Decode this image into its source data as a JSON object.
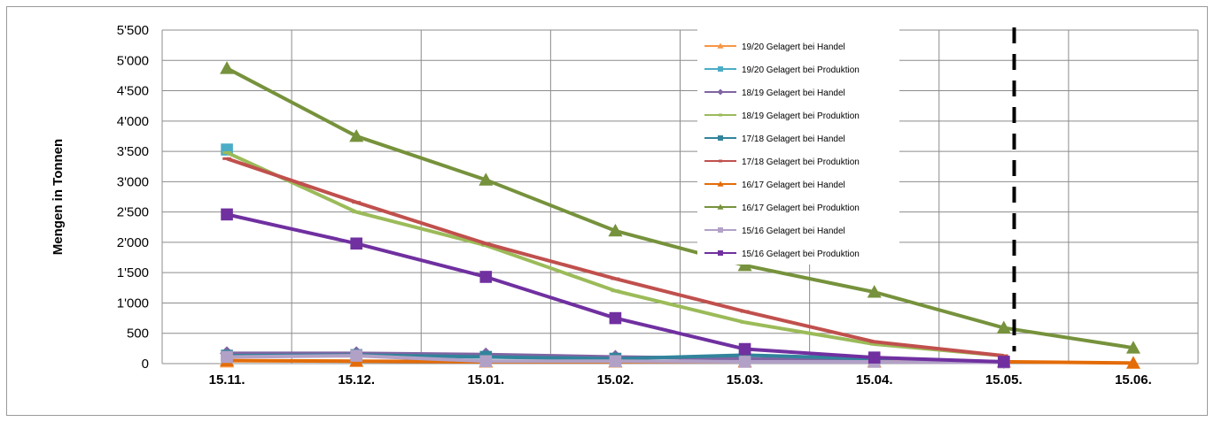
{
  "chart_data": {
    "type": "line",
    "title": "",
    "xlabel": "",
    "ylabel": "Mengen in Tonnen",
    "categories": [
      "15.11.",
      "15.12.",
      "15.01.",
      "15.02.",
      "15.03.",
      "15.04.",
      "15.05.",
      "15.06."
    ],
    "y_ticks": [
      "0",
      "500",
      "1'000",
      "1'500",
      "2'000",
      "2'500",
      "3'000",
      "3'500",
      "4'000",
      "4'500",
      "5'000",
      "5'500"
    ],
    "ylim": [
      0,
      5500
    ],
    "grid": true,
    "legend_position": "top-center",
    "marker_line": {
      "category": "15.05.",
      "style": "dashed",
      "color": "#000000"
    },
    "series": [
      {
        "name": "19/20 Gelagert bei Handel",
        "color": "#F79646",
        "marker": "triangle",
        "values": [
          30,
          null,
          null,
          null,
          null,
          null,
          null,
          null
        ]
      },
      {
        "name": "19/20 Gelagert bei Produktion",
        "color": "#4BACC6",
        "marker": "square",
        "values": [
          3530,
          null,
          null,
          null,
          null,
          null,
          null,
          null
        ]
      },
      {
        "name": "18/19 Gelagert bei Handel",
        "color": "#8064A2",
        "marker": "diamond",
        "values": [
          170,
          170,
          150,
          110,
          80,
          50,
          30,
          null
        ]
      },
      {
        "name": "18/19 Gelagert bei Produktion",
        "color": "#9BBB59",
        "marker": "line",
        "values": [
          3480,
          2500,
          1950,
          1200,
          680,
          320,
          130,
          null
        ]
      },
      {
        "name": "17/18 Gelagert bei Handel",
        "color": "#31849B",
        "marker": "square",
        "values": [
          130,
          140,
          110,
          80,
          140,
          80,
          30,
          null
        ]
      },
      {
        "name": "17/18 Gelagert bei Produktion",
        "color": "#C0504D",
        "marker": "line",
        "values": [
          3380,
          2660,
          1980,
          1400,
          860,
          360,
          130,
          null
        ]
      },
      {
        "name": "16/17 Gelagert bei Handel",
        "color": "#E36C09",
        "marker": "triangle",
        "values": [
          50,
          40,
          30,
          30,
          30,
          30,
          30,
          10
        ]
      },
      {
        "name": "16/17 Gelagert bei Produktion",
        "color": "#76923C",
        "marker": "triangle",
        "values": [
          4870,
          3750,
          3030,
          2190,
          1620,
          1180,
          590,
          260
        ]
      },
      {
        "name": "15/16 Gelagert bei Handel",
        "color": "#B2A1C7",
        "marker": "square",
        "values": [
          110,
          130,
          40,
          40,
          30,
          30,
          20,
          null
        ]
      },
      {
        "name": "15/16 Gelagert bei Produktion",
        "color": "#7030A0",
        "marker": "square",
        "values": [
          2460,
          1980,
          1430,
          750,
          240,
          100,
          30,
          null
        ]
      }
    ]
  }
}
